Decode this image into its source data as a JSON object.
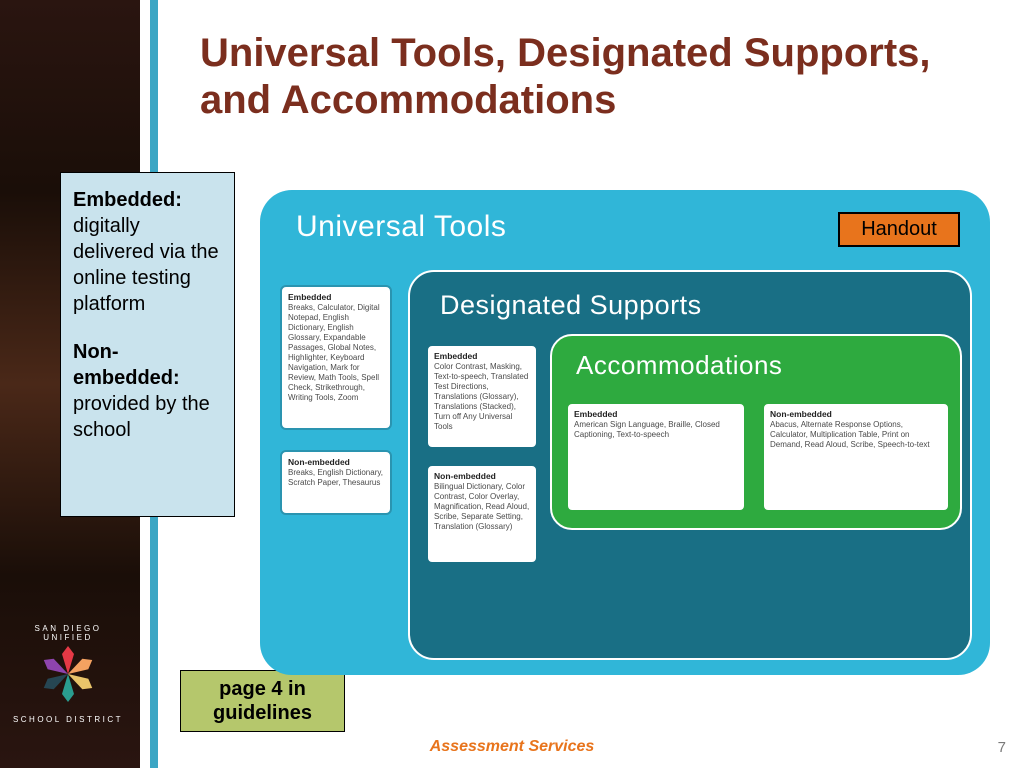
{
  "slide": {
    "title": "Universal Tools, Designated Supports, and Accommodations",
    "page_number": "7",
    "footer": "Assessment Services"
  },
  "definition": {
    "term1": "Embedded:",
    "desc1": "digitally delivered via the online testing platform",
    "term2": "Non-embedded:",
    "desc2": "provided by the school"
  },
  "page_ref": "page 4 in guidelines",
  "handout_label": "Handout",
  "diagram": {
    "outer": {
      "title": "Universal Tools",
      "bg_color": "#30b6d8",
      "embedded": {
        "header": "Embedded",
        "body": "Breaks, Calculator, Digital Notepad, English Dictionary, English Glossary, Expandable Passages, Global Notes, Highlighter, Keyboard Navigation, Mark for Review, Math Tools, Spell Check, Strikethrough, Writing Tools, Zoom"
      },
      "nonembedded": {
        "header": "Non-embedded",
        "body": "Breaks, English Dictionary, Scratch Paper, Thesaurus"
      }
    },
    "mid": {
      "title": "Designated Supports",
      "bg_color": "#196f85",
      "embedded": {
        "header": "Embedded",
        "body": "Color Contrast, Masking, Text-to-speech, Translated Test Directions, Translations (Glossary), Translations (Stacked), Turn off Any Universal Tools"
      },
      "nonembedded": {
        "header": "Non-embedded",
        "body": "Bilingual Dictionary, Color Contrast, Color Overlay, Magnification, Read Aloud, Scribe, Separate Setting, Translation (Glossary)"
      }
    },
    "inner": {
      "title": "Accommodations",
      "bg_color": "#2eaa3f",
      "embedded": {
        "header": "Embedded",
        "body": "American Sign Language, Braille, Closed Captioning, Text-to-speech"
      },
      "nonembedded": {
        "header": "Non-embedded",
        "body": "Abacus, Alternate Response Options, Calculator, Multiplication Table, Print on Demand, Read Aloud, Scribe, Speech-to-text"
      }
    }
  },
  "logo": {
    "top_text": "SAN DIEGO UNIFIED",
    "bottom_text": "SCHOOL DISTRICT",
    "petal_colors": [
      "#e63946",
      "#f4a261",
      "#e9c46a",
      "#2a9d8f",
      "#264653",
      "#8e44ad"
    ]
  },
  "colors": {
    "title": "#7b2e1e",
    "accent_bar": "#3ca6c4",
    "def_box_bg": "#c9e3ed",
    "page_ref_bg": "#b5c76c",
    "handout_bg": "#e8741c",
    "footer_text": "#e8741c"
  }
}
